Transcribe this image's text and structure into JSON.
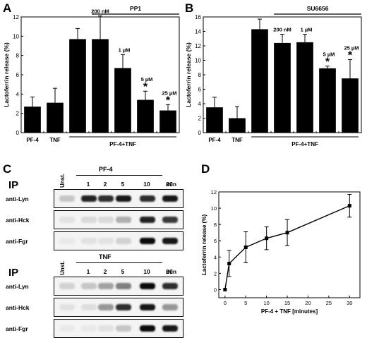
{
  "chart_data": [
    {
      "panel": "A",
      "type": "bar",
      "ylabel": "Lactoferrin release (%)",
      "ylim": [
        0,
        12
      ],
      "yticks": [
        0,
        2,
        4,
        6,
        8,
        10,
        12
      ],
      "categories": [
        "PF-4",
        "TNF",
        "PF-4+TNF",
        "200 nM",
        "1 µM",
        "5 µM",
        "25 µM"
      ],
      "values": [
        2.7,
        3.1,
        9.7,
        9.7,
        6.7,
        3.4,
        2.3
      ],
      "errors": [
        1.0,
        1.5,
        1.1,
        2.4,
        1.4,
        0.9,
        0.6
      ],
      "significant": [
        false,
        false,
        false,
        false,
        false,
        true,
        true
      ],
      "dose_labels": [
        "",
        "",
        "",
        "200 nM",
        "1 µM",
        "5 µM",
        "25 µM"
      ],
      "inhibitor": "PP1",
      "group_label": "PF-4+TNF",
      "x_labels": [
        "PF-4",
        "TNF"
      ]
    },
    {
      "panel": "B",
      "type": "bar",
      "ylabel": "Lactoferrin release (%)",
      "ylim": [
        0,
        16
      ],
      "yticks": [
        0,
        2,
        4,
        6,
        8,
        10,
        12,
        14,
        16
      ],
      "categories": [
        "PF-4",
        "TNF",
        "PF-4+TNF",
        "200 nM",
        "1 µM",
        "5 µM",
        "25 µM"
      ],
      "values": [
        3.5,
        2.0,
        14.3,
        12.4,
        12.5,
        8.9,
        7.5
      ],
      "errors": [
        1.4,
        1.6,
        1.4,
        1.2,
        1.1,
        0.3,
        2.6
      ],
      "significant": [
        false,
        false,
        false,
        false,
        false,
        true,
        true
      ],
      "dose_labels": [
        "",
        "",
        "",
        "200 nM",
        "1 µM",
        "5 µM",
        "25 µM"
      ],
      "inhibitor": "SU6656",
      "group_label": "PF-4+TNF",
      "x_labels": [
        "PF-4",
        "TNF"
      ]
    },
    {
      "panel": "D",
      "type": "line",
      "ylabel": "Lactoferrin release (%)",
      "xlabel": "PF-4 + TNF [minutes]",
      "xlim": [
        -1.5,
        32.5
      ],
      "ylim": [
        -1,
        12
      ],
      "xticks": [
        0,
        5,
        10,
        15,
        20,
        25,
        30
      ],
      "yticks": [
        0,
        2,
        4,
        6,
        8,
        10,
        12
      ],
      "x": [
        0,
        1,
        5,
        10,
        15,
        30
      ],
      "y": [
        0,
        3.2,
        5.2,
        6.3,
        7.0,
        10.3
      ],
      "errors": [
        0,
        1.6,
        1.9,
        1.4,
        1.6,
        1.4
      ]
    }
  ],
  "panel_letters": [
    "A",
    "B",
    "C",
    "D"
  ],
  "blots": [
    {
      "ip_label": "IP",
      "unst_label": "Unst.",
      "stimulus": "PF-4",
      "times": [
        "1",
        "2",
        "5",
        "10",
        "20"
      ],
      "min_label": "min",
      "rows": [
        {
          "label": "anti-Lyn",
          "intensities": [
            0.2,
            0.9,
            0.85,
            0.95,
            0.85,
            0.95
          ]
        },
        {
          "label": "anti-Hck",
          "intensities": [
            0.08,
            0.12,
            0.12,
            0.3,
            0.9,
            0.8
          ]
        },
        {
          "label": "anti-Fgr",
          "intensities": [
            0.05,
            0.08,
            0.08,
            0.15,
            1.0,
            0.95
          ]
        }
      ]
    },
    {
      "ip_label": "IP",
      "unst_label": "Unst.",
      "stimulus": "TNF",
      "times": [
        "1",
        "2",
        "5",
        "10",
        "20"
      ],
      "min_label": "min",
      "rows": [
        {
          "label": "anti-Lyn",
          "intensities": [
            0.15,
            0.2,
            0.35,
            0.5,
            1.0,
            0.85
          ]
        },
        {
          "label": "anti-Hck",
          "intensities": [
            0.08,
            0.1,
            0.4,
            0.85,
            0.95,
            0.4
          ]
        },
        {
          "label": "anti-Fgr",
          "intensities": [
            0.05,
            0.05,
            0.08,
            0.2,
            1.0,
            0.95
          ]
        }
      ]
    }
  ]
}
